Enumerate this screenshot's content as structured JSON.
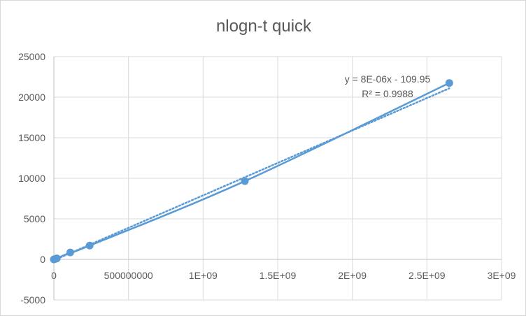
{
  "chart_data": {
    "type": "scatter",
    "title": "nlogn-t quick",
    "xlabel": "",
    "ylabel": "",
    "xlim": [
      0,
      3000000000
    ],
    "ylim": [
      -5000,
      25000
    ],
    "x_tick_labels": [
      "0",
      "500000000",
      "1E+09",
      "1.5E+09",
      "2E+09",
      "2.5E+09",
      "3E+09"
    ],
    "y_tick_labels": [
      "-5000",
      "0",
      "5000",
      "10000",
      "15000",
      "20000",
      "25000"
    ],
    "grid": true,
    "legend": "none",
    "series": [
      {
        "x": [
          0,
          10000000,
          20000000,
          110000000,
          240000000,
          1280000000,
          2650000000
        ],
        "y": [
          0,
          50,
          120,
          850,
          1700,
          9650,
          21750
        ],
        "marker_color": "#5b9bd5",
        "line_style": "smooth",
        "trendline": {
          "type": "linear",
          "slope": 8e-06,
          "intercept": -109.95,
          "style": "dotted",
          "equation_label": "y = 8E-06x - 109.95",
          "r2_label": "R² = 0.9988"
        }
      }
    ]
  }
}
